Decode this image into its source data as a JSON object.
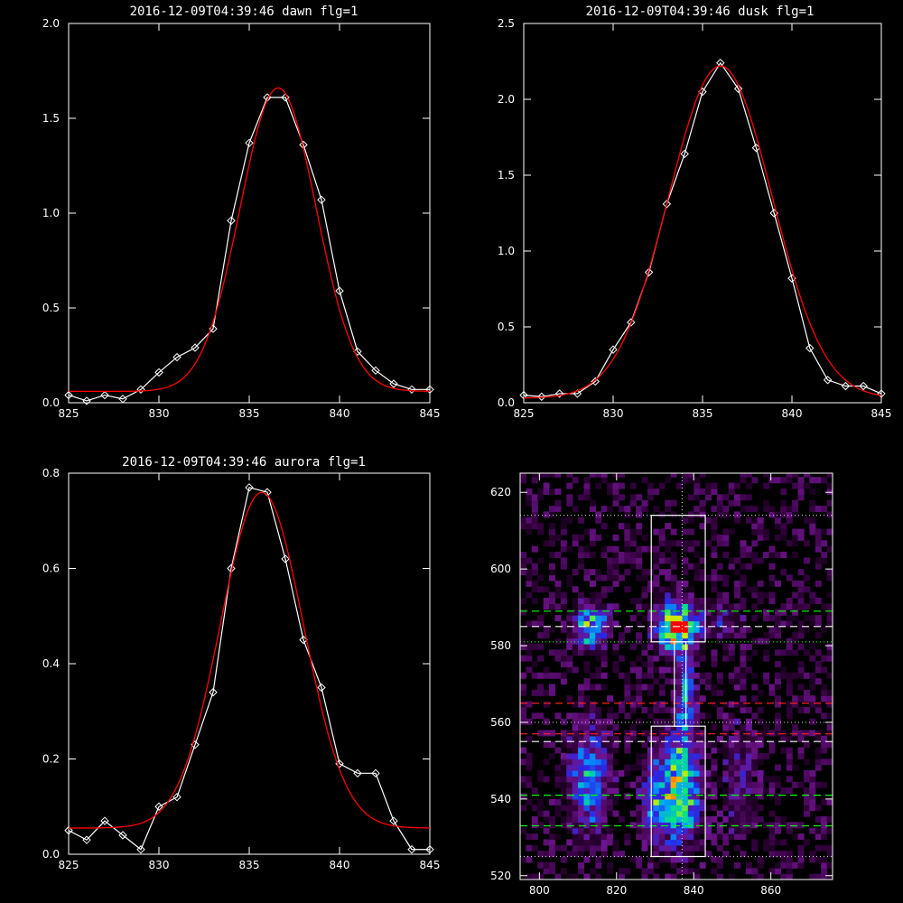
{
  "chart_data": [
    {
      "type": "line",
      "title": "2016-12-09T04:39:46 dawn flg=1",
      "xlim": [
        825,
        845
      ],
      "ylim": [
        0,
        2.0
      ],
      "xticks": [
        "825",
        "830",
        "835",
        "840",
        "845"
      ],
      "yticks": [
        "0.0",
        "0.5",
        "1.0",
        "1.5",
        "2.0"
      ],
      "series": [
        {
          "color": "#ffffff",
          "marker": "diamond",
          "x": [
            825,
            826,
            827,
            828,
            829,
            830,
            831,
            832,
            833,
            834,
            835,
            836,
            837,
            838,
            839,
            840,
            841,
            842,
            843,
            844,
            845
          ],
          "y": [
            0.04,
            0.01,
            0.04,
            0.02,
            0.07,
            0.16,
            0.24,
            0.29,
            0.39,
            0.96,
            1.37,
            1.61,
            1.61,
            1.36,
            1.07,
            0.59,
            0.27,
            0.17,
            0.1,
            0.07,
            0.07
          ]
        },
        {
          "color": "#ff0000",
          "fit": {
            "amplitude": 1.6,
            "center": 836.6,
            "sigma": 2.1,
            "offset": 0.06
          }
        }
      ]
    },
    {
      "type": "line",
      "title": "2016-12-09T04:39:46 dusk flg=1",
      "xlim": [
        825,
        845
      ],
      "ylim": [
        0,
        2.5
      ],
      "xticks": [
        "825",
        "830",
        "835",
        "840",
        "845"
      ],
      "yticks": [
        "0.0",
        "0.5",
        "1.0",
        "1.5",
        "2.0",
        "2.5"
      ],
      "series": [
        {
          "color": "#ffffff",
          "marker": "diamond",
          "x": [
            825,
            826,
            827,
            828,
            829,
            830,
            831,
            832,
            833,
            834,
            835,
            836,
            837,
            838,
            839,
            840,
            841,
            842,
            843,
            844,
            845
          ],
          "y": [
            0.05,
            0.04,
            0.06,
            0.06,
            0.14,
            0.35,
            0.53,
            0.86,
            1.31,
            1.64,
            2.05,
            2.24,
            2.07,
            1.68,
            1.25,
            0.82,
            0.36,
            0.15,
            0.11,
            0.11,
            0.06
          ]
        },
        {
          "color": "#ff0000",
          "fit": {
            "amplitude": 2.19,
            "center": 836.0,
            "sigma": 2.9,
            "offset": 0.03
          }
        }
      ]
    },
    {
      "type": "line",
      "title": "2016-12-09T04:39:46 aurora flg=1",
      "xlim": [
        825,
        845
      ],
      "ylim": [
        0,
        0.8
      ],
      "xticks": [
        "825",
        "830",
        "835",
        "840",
        "845"
      ],
      "yticks": [
        "0.0",
        "0.2",
        "0.4",
        "0.6",
        "0.8"
      ],
      "series": [
        {
          "color": "#ffffff",
          "marker": "diamond",
          "x": [
            825,
            826,
            827,
            828,
            829,
            830,
            831,
            832,
            833,
            834,
            835,
            836,
            837,
            838,
            839,
            840,
            841,
            842,
            843,
            844,
            845
          ],
          "y": [
            0.05,
            0.03,
            0.07,
            0.04,
            0.01,
            0.1,
            0.12,
            0.23,
            0.34,
            0.6,
            0.77,
            0.76,
            0.62,
            0.45,
            0.35,
            0.19,
            0.17,
            0.17,
            0.07,
            0.01,
            0.01
          ]
        },
        {
          "color": "#ff0000",
          "fit": {
            "amplitude": 0.705,
            "center": 835.7,
            "sigma": 2.3,
            "offset": 0.055
          }
        }
      ]
    },
    {
      "type": "heatmap",
      "xlim": [
        795,
        876
      ],
      "ylim": [
        519,
        625
      ],
      "xticks": [
        "800",
        "820",
        "840",
        "860"
      ],
      "yticks": [
        "520",
        "540",
        "560",
        "580",
        "600",
        "620"
      ],
      "blobs": [
        {
          "x": 813,
          "y": 585,
          "sx": 3,
          "sy": 4,
          "amp": 0.55
        },
        {
          "x": 836,
          "y": 585,
          "sx": 3.5,
          "sy": 4.5,
          "amp": 1.0
        },
        {
          "x": 848,
          "y": 586,
          "sx": 3,
          "sy": 3,
          "amp": 0.2
        },
        {
          "x": 813,
          "y": 545,
          "sx": 3.5,
          "sy": 9,
          "amp": 0.5
        },
        {
          "x": 836,
          "y": 543,
          "sx": 3.5,
          "sy": 9,
          "amp": 0.8
        },
        {
          "x": 829,
          "y": 540,
          "sx": 2,
          "sy": 7,
          "amp": 0.3
        },
        {
          "x": 852,
          "y": 545,
          "sx": 3,
          "sy": 10,
          "amp": 0.2
        },
        {
          "x": 838,
          "y": 566,
          "sx": 1.5,
          "sy": 8,
          "amp": 0.5
        }
      ],
      "rects": [
        {
          "x0": 829,
          "x1": 843,
          "y0": 581,
          "y1": 614
        },
        {
          "x0": 829,
          "x1": 843,
          "y0": 525,
          "y1": 559
        },
        {
          "x0": 835,
          "x1": 838,
          "y0": 559,
          "y1": 581
        }
      ],
      "hlines": [
        {
          "y": 614,
          "color": "#c8c8c8",
          "style": "dotted"
        },
        {
          "y": 589,
          "color": "#00ff00",
          "style": "dashed"
        },
        {
          "y": 585,
          "color": "#ffffff",
          "style": "dashed"
        },
        {
          "y": 581,
          "color": "#00ff00",
          "style": "dotted"
        },
        {
          "y": 565,
          "color": "#ff2020",
          "style": "dashed"
        },
        {
          "y": 560,
          "color": "#c8c8c8",
          "style": "dotted"
        },
        {
          "y": 557,
          "color": "#ff2020",
          "style": "dashed"
        },
        {
          "y": 555,
          "color": "#ffffff",
          "style": "dashed"
        },
        {
          "y": 541,
          "color": "#00ff00",
          "style": "dashed"
        },
        {
          "y": 533,
          "color": "#00ff00",
          "style": "dashed"
        },
        {
          "y": 525,
          "color": "#c8c8c8",
          "style": "dotted"
        }
      ],
      "vlines": [
        {
          "x": 837,
          "color": "#c8c8c8",
          "style": "dotted"
        }
      ]
    }
  ]
}
